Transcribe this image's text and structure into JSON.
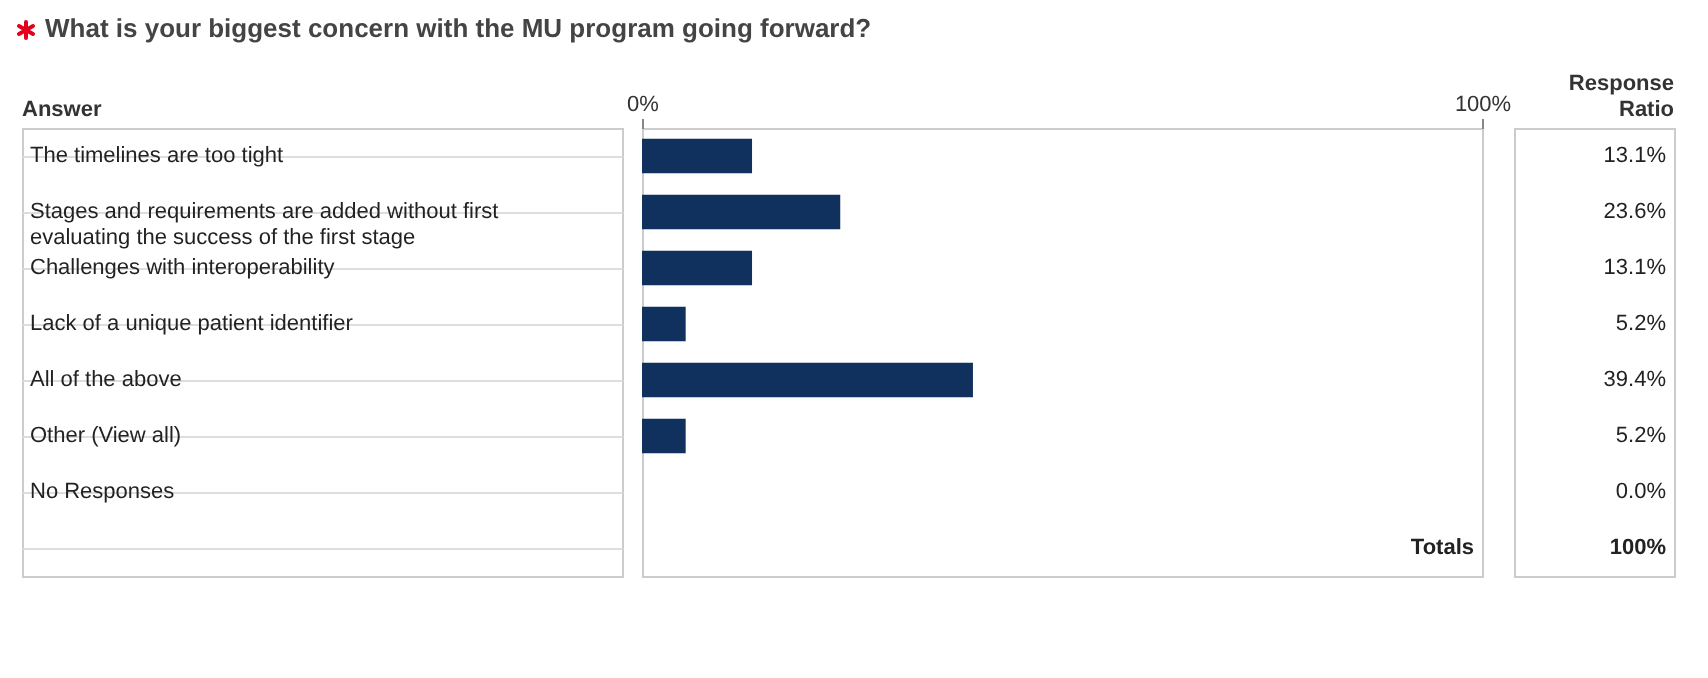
{
  "chart_data": {
    "type": "bar",
    "orientation": "horizontal",
    "title": "What is your biggest concern with the MU program going forward?",
    "ylabel": "Answer",
    "y2label": "Response Ratio",
    "categories": [
      "The timelines are too tight",
      "Stages and requirements are added without first evaluating the success of the first stage",
      "Challenges with interoperability",
      "Lack of a unique patient identifier",
      "All of the above",
      "Other  (View all)",
      "No Responses"
    ],
    "values": [
      13.1,
      23.6,
      13.1,
      5.2,
      39.4,
      5.2,
      0.0
    ],
    "value_labels": [
      "13.1%",
      "23.6%",
      "13.1%",
      "5.2%",
      "39.4%",
      "5.2%",
      "0.0%"
    ],
    "color": "#10305e",
    "xlim": [
      0,
      100
    ],
    "xticks": [
      {
        "value": 0,
        "label": "0%"
      },
      {
        "value": 100,
        "label": "100%"
      }
    ],
    "annotations": [
      "Totals",
      "100%"
    ]
  }
}
